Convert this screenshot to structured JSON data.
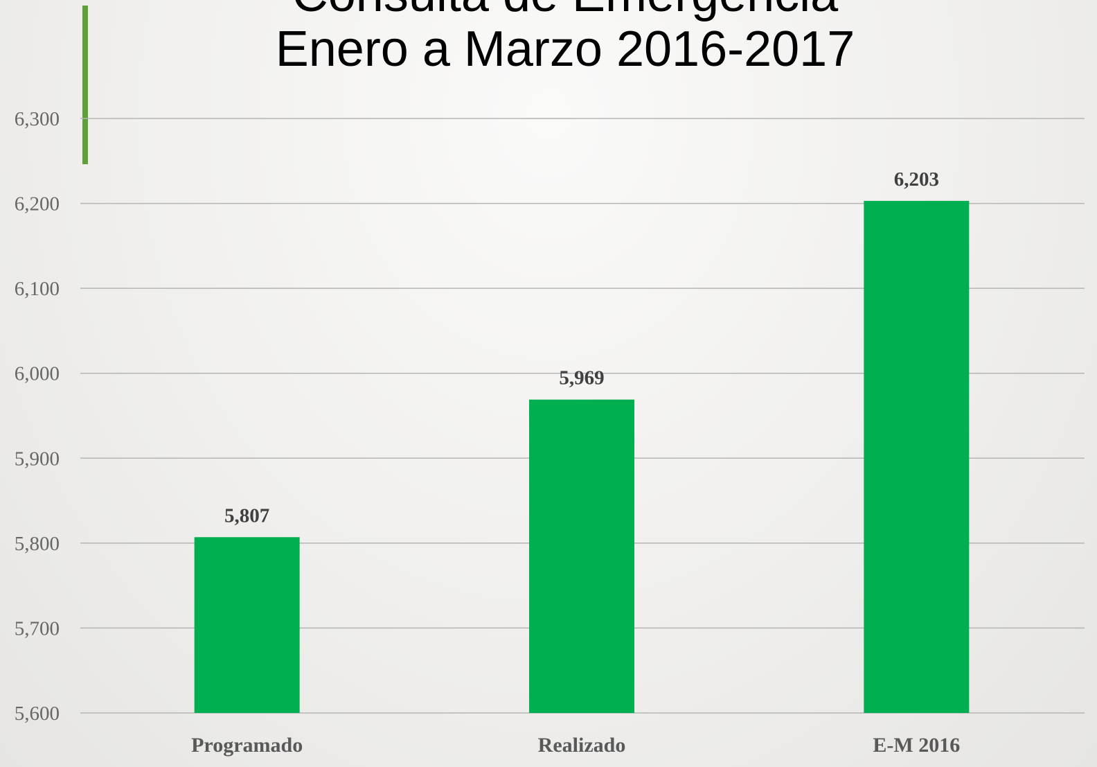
{
  "chart_data": {
    "type": "bar",
    "title": [
      "Consulta de Emergencia",
      "Enero a Marzo 2016-2017"
    ],
    "categories": [
      "Programado",
      "Realizado",
      "E-M 2016"
    ],
    "values": [
      5807,
      5969,
      6203
    ],
    "value_labels": [
      "5,807",
      "5,969",
      "6,203"
    ],
    "color": "#00b050",
    "ylim": [
      5600,
      6300
    ],
    "yticks": [
      {
        "value": 5600,
        "label": "5,600"
      },
      {
        "value": 5700,
        "label": "5,700"
      },
      {
        "value": 5800,
        "label": "5,800"
      },
      {
        "value": 5900,
        "label": "5,900"
      },
      {
        "value": 6000,
        "label": "6,000"
      },
      {
        "value": 6100,
        "label": "6,100"
      },
      {
        "value": 6200,
        "label": "6,200"
      },
      {
        "value": 6300,
        "label": "6,300"
      }
    ],
    "grid": true
  }
}
